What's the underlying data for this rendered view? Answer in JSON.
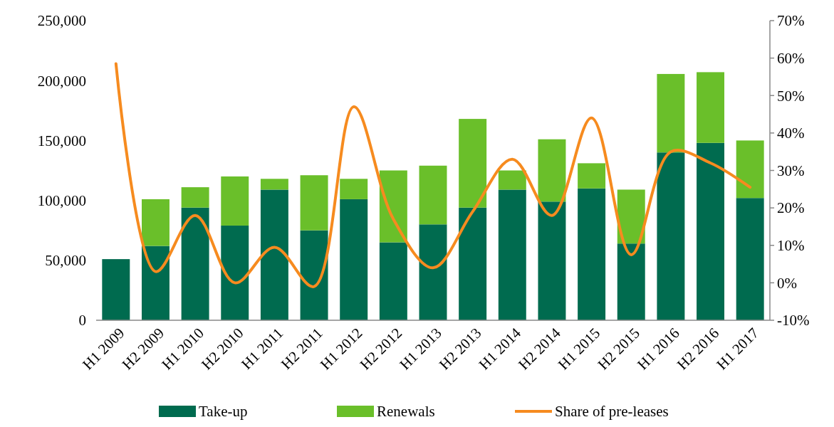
{
  "chart_data": {
    "type": "bar",
    "stacked": true,
    "categories": [
      "H1 2009",
      "H2 2009",
      "H1 2010",
      "H2 2010",
      "H1 2011",
      "H2 2011",
      "H1 2012",
      "H2 2012",
      "H1 2013",
      "H2 2013",
      "H1 2014",
      "H2 2014",
      "H1 2015",
      "H2 2015",
      "H1 2016",
      "H2 2016",
      "H1 2017"
    ],
    "series": [
      {
        "name": "Take-up",
        "color": "#006b4f",
        "values": [
          51000,
          62000,
          94000,
          79000,
          109000,
          75000,
          101000,
          65000,
          80000,
          94000,
          109000,
          99000,
          110000,
          64000,
          140000,
          148000,
          102000
        ]
      },
      {
        "name": "Renewals",
        "color": "#6abf2a",
        "values": [
          0,
          39000,
          17000,
          41000,
          9000,
          46000,
          17000,
          60000,
          49000,
          74000,
          16000,
          52000,
          21000,
          45000,
          65500,
          59000,
          48000
        ]
      },
      {
        "name": "Share of pre-leases",
        "type": "line",
        "axis": "y2",
        "color": "#f68b1f",
        "values": [
          58.5,
          3,
          18,
          0,
          9.5,
          -1,
          47,
          17,
          4,
          19,
          33,
          18,
          44,
          7.5,
          35,
          32,
          25.5
        ]
      }
    ],
    "ylim": [
      0,
      250000
    ],
    "yticks": [
      {
        "value": 0,
        "label": "0"
      },
      {
        "value": 50000,
        "label": "50,000"
      },
      {
        "value": 100000,
        "label": "100,000"
      },
      {
        "value": 150000,
        "label": "150,000"
      },
      {
        "value": 200000,
        "label": "200,000"
      },
      {
        "value": 250000,
        "label": "250,000"
      }
    ],
    "y2lim": [
      -10,
      70
    ],
    "y2ticks": [
      {
        "value": -10,
        "label": "-10%"
      },
      {
        "value": 0,
        "label": "0%"
      },
      {
        "value": 10,
        "label": "10%"
      },
      {
        "value": 20,
        "label": "20%"
      },
      {
        "value": 30,
        "label": "30%"
      },
      {
        "value": 40,
        "label": "40%"
      },
      {
        "value": 50,
        "label": "50%"
      },
      {
        "value": 60,
        "label": "60%"
      },
      {
        "value": 70,
        "label": "70%"
      }
    ],
    "grid": false,
    "legend": "bottom",
    "marker": "none",
    "line_style": "solid"
  }
}
